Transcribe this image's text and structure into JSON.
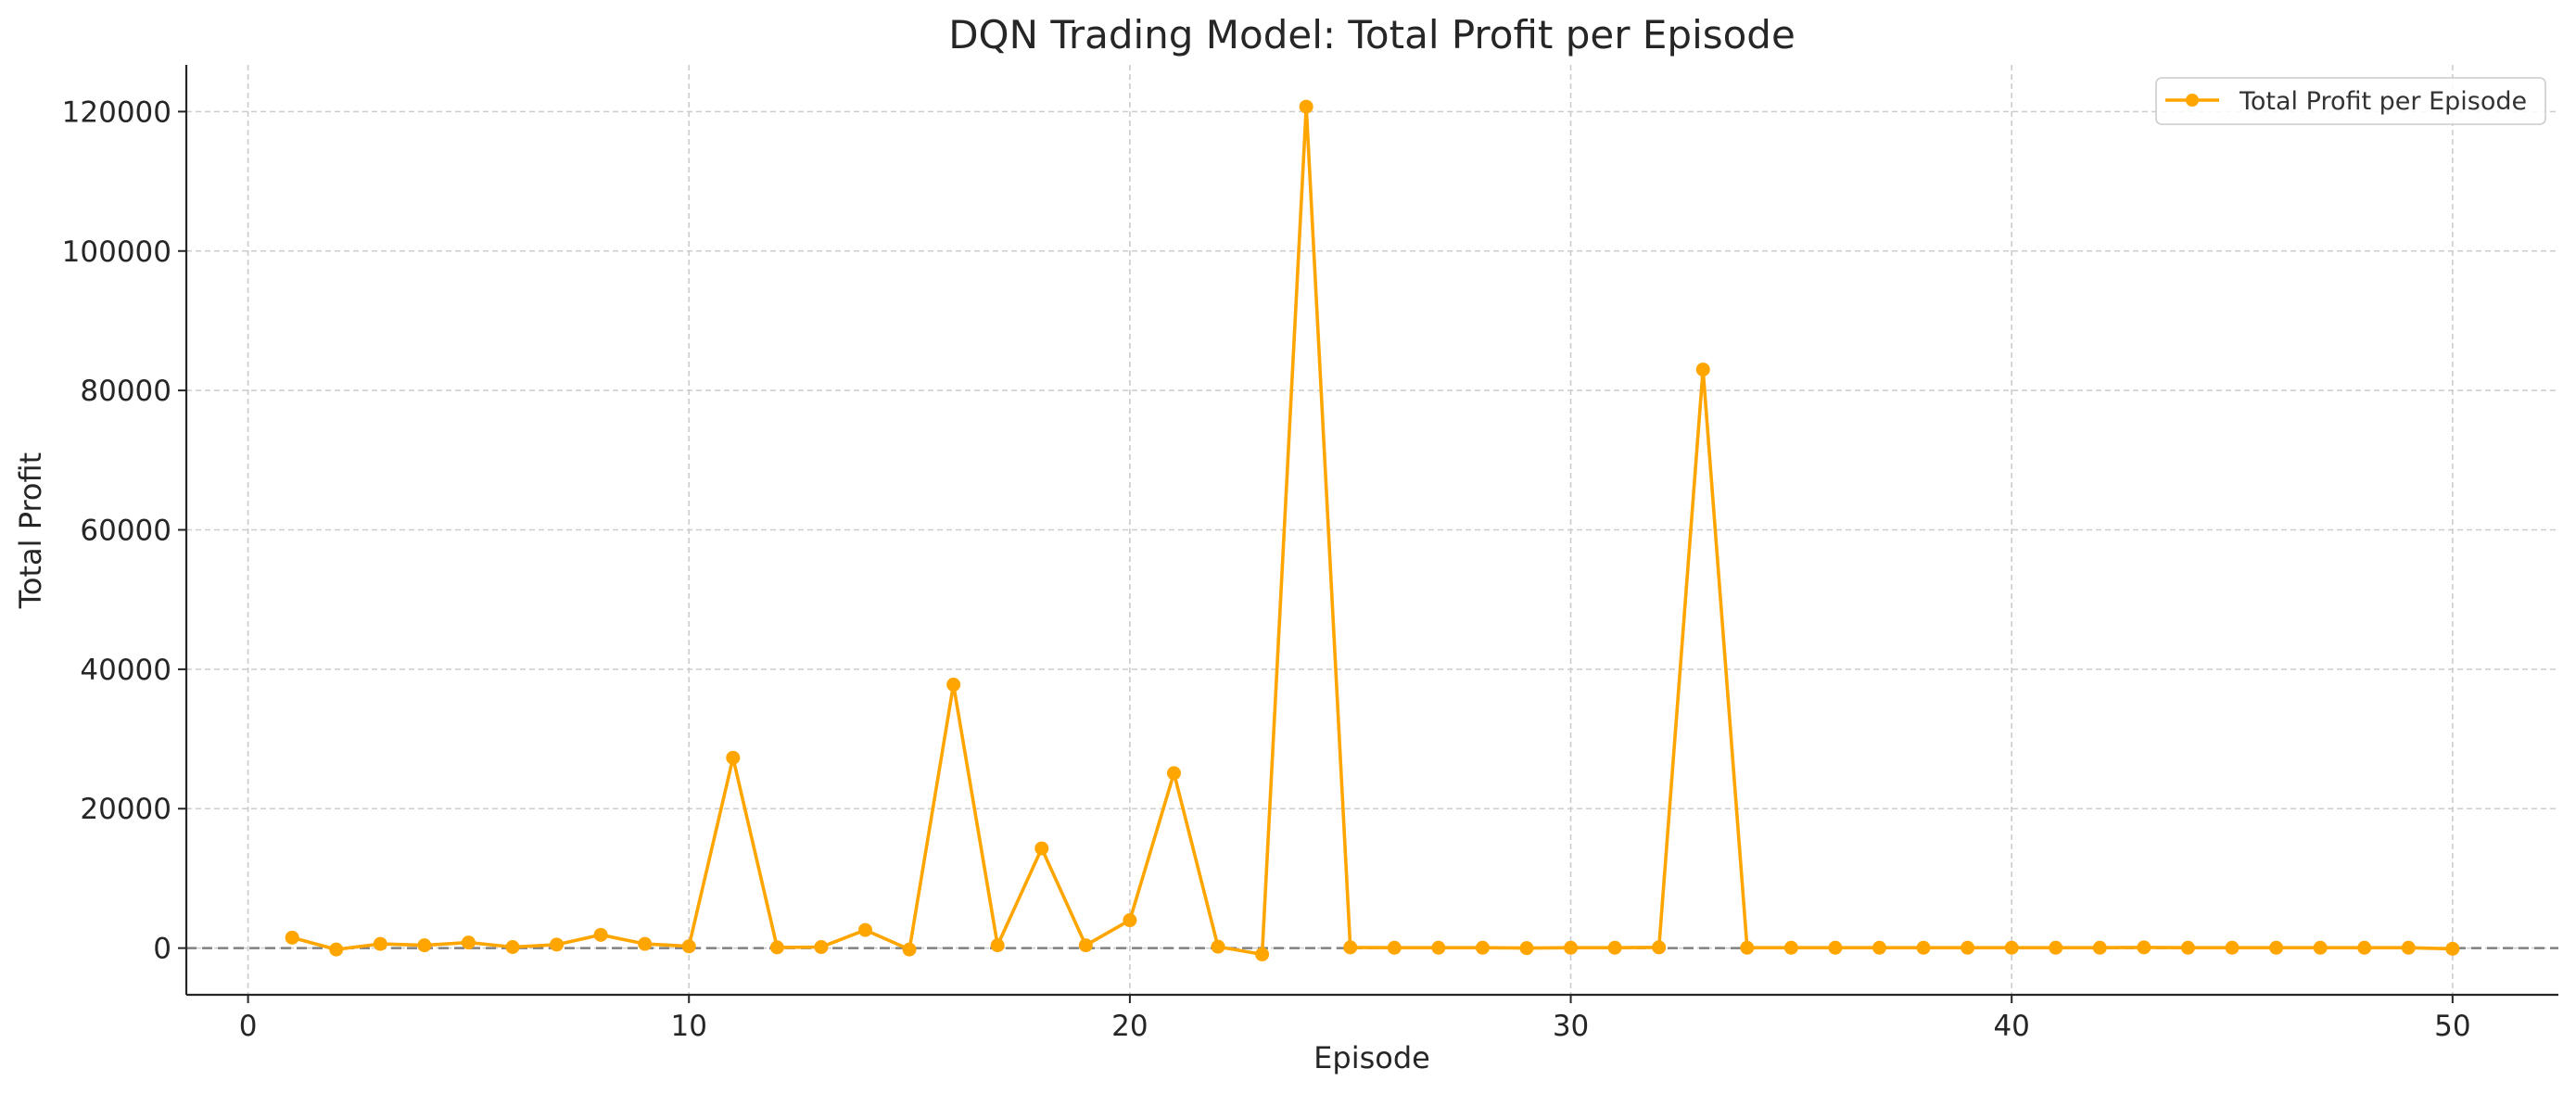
{
  "chart_data": {
    "type": "line",
    "title": "DQN Trading Model: Total Profit per Episode",
    "xlabel": "Episode",
    "ylabel": "Total Profit",
    "xlim": [
      -1.4,
      52.4
    ],
    "ylim": [
      -6700,
      126700
    ],
    "xticks": [
      0,
      10,
      20,
      30,
      40,
      50
    ],
    "yticks": [
      0,
      20000,
      40000,
      60000,
      80000,
      100000,
      120000
    ],
    "grid": true,
    "grid_style": "dashed",
    "legend_position": "top-right",
    "reference_line": {
      "y": 0,
      "style": "dashed",
      "color": "#808080"
    },
    "series": [
      {
        "name": "Total Profit per Episode",
        "color": "#ffa500",
        "marker": "circle",
        "x": [
          1,
          2,
          3,
          4,
          5,
          6,
          7,
          8,
          9,
          10,
          11,
          12,
          13,
          14,
          15,
          16,
          17,
          18,
          19,
          20,
          21,
          22,
          23,
          24,
          25,
          26,
          27,
          28,
          29,
          30,
          31,
          32,
          33,
          34,
          35,
          36,
          37,
          38,
          39,
          40,
          41,
          42,
          43,
          44,
          45,
          46,
          47,
          48,
          49,
          50
        ],
        "y": [
          1500,
          -200,
          600,
          400,
          800,
          150,
          500,
          1900,
          600,
          250,
          27300,
          100,
          150,
          2600,
          -200,
          37800,
          400,
          14300,
          400,
          4000,
          25100,
          200,
          -900,
          120700,
          100,
          50,
          50,
          50,
          0,
          50,
          50,
          100,
          83000,
          50,
          50,
          50,
          50,
          50,
          50,
          50,
          50,
          50,
          100,
          50,
          50,
          50,
          50,
          50,
          50,
          -100
        ]
      }
    ]
  }
}
